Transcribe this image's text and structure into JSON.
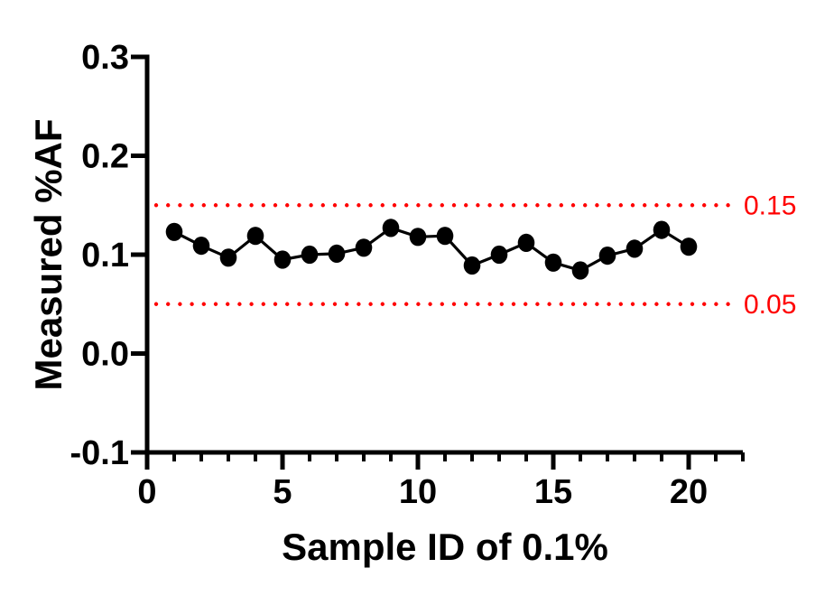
{
  "figure": {
    "background": "#ffffff"
  },
  "chart_data": {
    "type": "line",
    "title": "",
    "xlabel": "Sample ID of 0.1%",
    "ylabel": "Measured %AF",
    "x": [
      1,
      2,
      3,
      4,
      5,
      6,
      7,
      8,
      9,
      10,
      11,
      12,
      13,
      14,
      15,
      16,
      17,
      18,
      19,
      20
    ],
    "series": [
      {
        "name": "Measured %AF",
        "marker": "filled-circle",
        "color": "#000000",
        "values": [
          0.123,
          0.109,
          0.097,
          0.119,
          0.095,
          0.1,
          0.101,
          0.107,
          0.127,
          0.118,
          0.119,
          0.089,
          0.1,
          0.112,
          0.092,
          0.084,
          0.099,
          0.106,
          0.125,
          0.108
        ]
      }
    ],
    "xlim": [
      0,
      22
    ],
    "ylim": [
      -0.1,
      0.3
    ],
    "grid": false,
    "legend": false,
    "axis_color": "#000000",
    "x_major_ticks": [
      {
        "value": 0,
        "label": "0"
      },
      {
        "value": 5,
        "label": "5"
      },
      {
        "value": 10,
        "label": "10"
      },
      {
        "value": 15,
        "label": "15"
      },
      {
        "value": 20,
        "label": "20"
      }
    ],
    "x_minor_ticks": [
      1,
      2,
      3,
      4,
      6,
      7,
      8,
      9,
      11,
      12,
      13,
      14,
      16,
      17,
      18,
      19,
      21,
      22
    ],
    "y_ticks": [
      {
        "value": 0.3,
        "label": "0.3"
      },
      {
        "value": 0.2,
        "label": "0.2"
      },
      {
        "value": 0.1,
        "label": "0.1"
      },
      {
        "value": 0.0,
        "label": "0.0"
      },
      {
        "value": -0.1,
        "label": "-0.1"
      }
    ],
    "reference_lines": [
      {
        "value": 0.15,
        "label": "0.15",
        "color": "#ff0000",
        "style": "dotted"
      },
      {
        "value": 0.05,
        "label": "0.05",
        "color": "#ff0000",
        "style": "dotted"
      }
    ]
  }
}
